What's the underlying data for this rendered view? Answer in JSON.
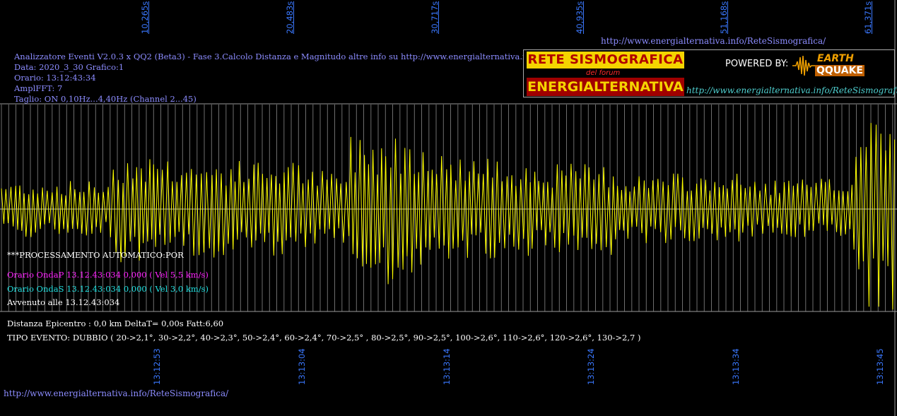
{
  "header": {
    "top_url": "http://www.energialternativa.info/ReteSismografica/",
    "info_line1": "Analizzatore Eventi V2.0.3 x QQ2 (Beta3) - Fase 3.Calcolo Distanza e Magnitudo altre info su http://www.energialternativa.info/ReteSism",
    "info_line2": "Data: 2020_3_30 Grafico:1",
    "info_line3": "Orario: 13:12:43:34",
    "info_line4": "AmplFFT: 7",
    "info_line5": "Taglio: ON 0,10Hz...4,40Hz       (Channel 2...45)"
  },
  "top_ticks": [
    "10,265s",
    "20,483s",
    "30,717s",
    "40,935s",
    "51,168s",
    "61,371s"
  ],
  "bottom_ticks": [
    "13:12:53",
    "13:13:04",
    "13:13:14",
    "13:13:24",
    "13:13:34",
    "13:13:45"
  ],
  "logo": {
    "line1": "RETE SISMOGRAFICA",
    "line2": "del forum",
    "line3": "ENERGIALTERNATIVA",
    "powered": "POWERED BY:",
    "earth": "EARTH",
    "quake": "QQUAKE",
    "url": "http://www.energialternativa.info/ReteSismografica"
  },
  "processing": {
    "title": "***PROCESSAMENTO AUTOMATICO:POR",
    "ondap": "Orario OndaP 13.12.43:034  0,000  ( Vel 5,5 km/s)",
    "ondas": "Orario OndaS 13.12.43:034  0,000  ( Vel 3,0 km/s)",
    "avvenuto": "Avvenuto alle 13.12.43:034"
  },
  "summary": {
    "distanza": "Distanza Epicentro : 0,0 km DeltaT= 0,00s  Fatt:6,60",
    "tipo": "TIPO EVENTO: DUBBIO ( 20->2,1°, 30->2,2°, 40->2,3°, 50->2,4°, 60->2,4°, 70->2,5° , 80->2,5°, 90->2,5°, 100->2,6°, 110->2,6°, 120->2,6°, 130->2,7 )"
  },
  "footer_url": "http://www.energialternativa.info/ReteSismografica/",
  "colors": {
    "background": "#000000",
    "trace": "#ffff00",
    "grid": "#6e6e6e",
    "info_text": "#8c8cff",
    "tick_text": "#3a78ff",
    "ondap": "#ff22ff",
    "ondas": "#22e0e0"
  },
  "chart_data": {
    "type": "line",
    "x_range_s": [
      0,
      64
    ],
    "envelope_segments": [
      {
        "from_s": 0,
        "to_s": 7.7,
        "amplitude": 0.28
      },
      {
        "from_s": 7.7,
        "to_s": 12.5,
        "amplitude": 0.55
      },
      {
        "from_s": 12.5,
        "to_s": 22,
        "amplitude": 0.48
      },
      {
        "from_s": 22,
        "to_s": 25,
        "amplitude": 0.38
      },
      {
        "from_s": 25,
        "to_s": 31,
        "amplitude": 0.75
      },
      {
        "from_s": 31,
        "to_s": 34,
        "amplitude": 0.55
      },
      {
        "from_s": 34,
        "to_s": 38,
        "amplitude": 0.5
      },
      {
        "from_s": 38,
        "to_s": 44,
        "amplitude": 0.45
      },
      {
        "from_s": 44,
        "to_s": 53,
        "amplitude": 0.35
      },
      {
        "from_s": 53,
        "to_s": 61,
        "amplitude": 0.3
      },
      {
        "from_s": 61,
        "to_s": 62,
        "amplitude": 0.85
      },
      {
        "from_s": 62,
        "to_s": 64,
        "amplitude": 1.0
      }
    ]
  }
}
